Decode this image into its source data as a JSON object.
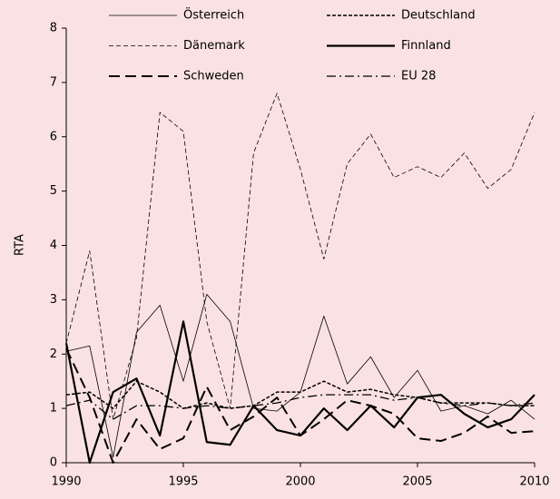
{
  "chart_data": {
    "type": "line",
    "ylabel": "RTA",
    "x": [
      1990,
      1991,
      1992,
      1993,
      1994,
      1995,
      1996,
      1997,
      1998,
      1999,
      2000,
      2001,
      2002,
      2003,
      2004,
      2005,
      2006,
      2007,
      2008,
      2009,
      2010
    ],
    "xlim": [
      1990,
      2010
    ],
    "xticks": [
      1990,
      1995,
      2000,
      2005,
      2010
    ],
    "ylim": [
      0,
      8
    ],
    "yticks": [
      0,
      1,
      2,
      3,
      4,
      5,
      6,
      7,
      8
    ],
    "series": [
      {
        "name": "Österreich",
        "color": "#000000",
        "values": [
          2.05,
          2.15,
          0.1,
          2.4,
          2.9,
          1.5,
          3.1,
          2.6,
          1.0,
          0.95,
          1.3,
          2.7,
          1.45,
          1.95,
          1.2,
          1.7,
          0.95,
          1.05,
          0.9,
          1.15,
          0.8
        ]
      },
      {
        "name": "Deutschland",
        "color": "#000000",
        "values": [
          1.25,
          1.3,
          1.0,
          1.5,
          1.3,
          1.0,
          1.1,
          1.0,
          1.05,
          1.3,
          1.3,
          1.5,
          1.3,
          1.35,
          1.25,
          1.2,
          1.1,
          1.1,
          1.1,
          1.05,
          1.05
        ]
      },
      {
        "name": "Dänemark",
        "color": "#000000",
        "values": [
          2.2,
          3.9,
          0.8,
          2.3,
          6.45,
          6.1,
          2.6,
          1.0,
          5.7,
          6.8,
          5.4,
          3.75,
          5.5,
          6.05,
          5.25,
          5.45,
          5.25,
          5.7,
          5.05,
          5.4,
          6.45
        ]
      },
      {
        "name": "Finnland",
        "color": "#000000",
        "values": [
          2.2,
          0.0,
          1.3,
          1.55,
          0.5,
          2.6,
          0.38,
          0.33,
          1.05,
          0.6,
          0.5,
          1.0,
          0.6,
          1.05,
          0.65,
          1.2,
          1.25,
          0.9,
          0.65,
          0.8,
          1.25
        ]
      },
      {
        "name": "Schweden",
        "color": "#000000",
        "values": [
          2.1,
          1.2,
          0.0,
          0.8,
          0.25,
          0.45,
          1.4,
          0.6,
          0.85,
          1.2,
          0.5,
          0.8,
          1.15,
          1.05,
          0.9,
          0.45,
          0.4,
          0.55,
          0.85,
          0.55,
          0.58
        ]
      },
      {
        "name": "EU 28",
        "color": "#000000",
        "values": [
          1.05,
          1.15,
          0.8,
          1.05,
          1.05,
          1.0,
          1.05,
          1.0,
          1.05,
          1.1,
          1.2,
          1.25,
          1.25,
          1.25,
          1.15,
          1.2,
          1.1,
          1.05,
          1.1,
          1.05,
          1.1
        ]
      }
    ]
  }
}
